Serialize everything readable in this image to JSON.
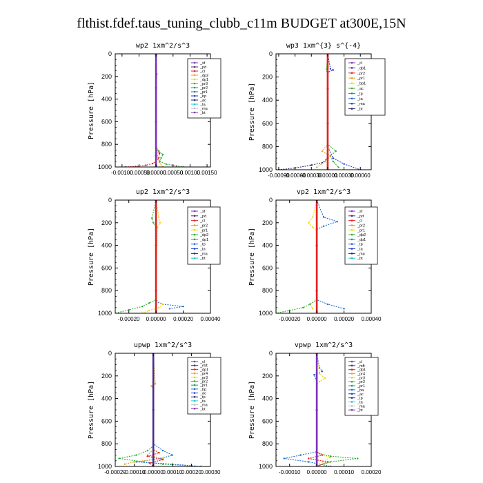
{
  "figure": {
    "title": "flthist.fdef.taus_tuning_clubb_c11m  BUDGET at300E,15N",
    "ylabel": "Pressure [hPa]"
  },
  "colors": {
    "legend_palette": [
      "#7b2fbe",
      "#4b2a8f",
      "#e0201c",
      "#e8a31a",
      "#f5d20b",
      "#2eb02e",
      "#12a15a",
      "#1e6fd0",
      "#1d3bd1",
      "#2a2a6f",
      "#16cccc",
      "#c0c0c0"
    ]
  },
  "chart_data": [
    {
      "type": "line",
      "title": "wp2  1xm^2/s^3",
      "ylabel": "Pressure [hPa]",
      "ylim": [
        1000,
        0
      ],
      "yticks": [
        0,
        200,
        400,
        600,
        800,
        1000
      ],
      "xlim": [
        -0.0012,
        0.0016
      ],
      "xtick_labels": [
        "-0.00100",
        "-0.00050",
        "0.00000",
        "0.00050",
        "0.00100",
        "0.00150"
      ],
      "legend": [
        "_sf",
        "_pd",
        "_cl",
        "_dp2",
        "_dp1",
        "_pr3",
        "_pr2",
        "_pr1",
        "_bp",
        "_ac",
        "_ta",
        "_ma",
        "_bt"
      ],
      "series": [
        {
          "color": "#e0201c",
          "x": [
            0,
            0,
            0,
            0,
            0,
            0,
            0,
            0,
            0.0001,
            8e-05,
            0,
            -0.0001,
            -0.0003,
            -0.0006,
            -0.0009
          ],
          "y": [
            0,
            100,
            200,
            300,
            500,
            700,
            800,
            840,
            880,
            920,
            950,
            970,
            985,
            995,
            1000
          ]
        },
        {
          "color": "#2eb02e",
          "x": [
            0,
            0,
            0,
            0,
            0,
            0,
            8e-05,
            0.0002,
            0.00015,
            0.0001,
            0.0003,
            0.0006,
            0.0008
          ],
          "y": [
            0,
            200,
            300,
            500,
            700,
            820,
            860,
            890,
            920,
            950,
            975,
            990,
            1000
          ]
        },
        {
          "color": "#e8a31a",
          "x": [
            0,
            0,
            3e-05,
            1e-05,
            0,
            0,
            5e-05,
            3e-05,
            0.0001,
            0.0002
          ],
          "y": [
            0,
            150,
            180,
            210,
            500,
            820,
            850,
            900,
            960,
            1000
          ]
        },
        {
          "color": "#7b2fbe",
          "x": [
            0,
            0,
            0,
            0,
            0
          ],
          "y": [
            0,
            300,
            600,
            900,
            1000
          ]
        }
      ]
    },
    {
      "type": "line",
      "title": "wp3  1xm^{3} s^{-4}",
      "ylabel": "Pressure [hPa]",
      "ylim": [
        1000,
        0
      ],
      "yticks": [
        0,
        200,
        400,
        600,
        800,
        1000
      ],
      "xlim": [
        -0.00095,
        0.0008
      ],
      "xtick_labels": [
        "-0.00090",
        "-0.00060",
        "-0.00030",
        "0.00000",
        "0.00030",
        "0.00060"
      ],
      "legend": [
        "_cl",
        "_dp1",
        "_pr2",
        "_pr1",
        "_bp1",
        "_ac",
        "_tp",
        "_ta",
        "_ma",
        "_bt"
      ],
      "series": [
        {
          "color": "#2a2a6f",
          "x": [
            0,
            0,
            0,
            0,
            0,
            -0.0001,
            -0.0003,
            -0.0006,
            -0.0009
          ],
          "y": [
            0,
            200,
            500,
            800,
            900,
            940,
            960,
            985,
            1000
          ]
        },
        {
          "color": "#1d3bd1",
          "x": [
            0,
            5e-05,
            0.0001,
            0,
            0,
            0.0001,
            0.0003,
            0.0006
          ],
          "y": [
            0,
            130,
            140,
            160,
            800,
            900,
            950,
            1000
          ]
        },
        {
          "color": "#2eb02e",
          "x": [
            0,
            -2e-05,
            -1e-05,
            0,
            0,
            0.00015,
            5e-05,
            0.0001,
            0.0002
          ],
          "y": [
            0,
            130,
            150,
            170,
            780,
            840,
            880,
            930,
            980
          ]
        },
        {
          "color": "#e8a31a",
          "x": [
            0,
            0,
            -0.0001,
            5e-05,
            -5e-05,
            -0.0002
          ],
          "y": [
            0,
            780,
            840,
            880,
            930,
            980
          ]
        },
        {
          "color": "#e0201c",
          "x": [
            0,
            0,
            0,
            0,
            0
          ],
          "y": [
            0,
            300,
            600,
            900,
            1000
          ]
        }
      ]
    },
    {
      "type": "line",
      "title": "up2  1xm^2/s^3",
      "ylabel": "Pressure [hPa]",
      "ylim": [
        1000,
        0
      ],
      "yticks": [
        0,
        200,
        400,
        600,
        800,
        1000
      ],
      "xlim": [
        -0.0003,
        0.0004
      ],
      "xtick_labels": [
        "-0.00020",
        "0.00000",
        "0.00020",
        "0.00040"
      ],
      "legend": [
        "_sf",
        "_pd",
        "_cl",
        "_pr2",
        "_pr1",
        "_dp2",
        "_dp1",
        "_tp",
        "_ta",
        "_ma",
        "_bt"
      ],
      "series": [
        {
          "color": "#2eb02e",
          "x": [
            0,
            -3e-05,
            -2e-05,
            0,
            0,
            0,
            -5e-05,
            -0.0001,
            -0.0002,
            -0.0003
          ],
          "y": [
            0,
            160,
            200,
            240,
            800,
            880,
            910,
            940,
            970,
            1000
          ]
        },
        {
          "color": "#1e6fd0",
          "x": [
            0,
            0,
            0,
            5e-05,
            0.0002,
            0.0001
          ],
          "y": [
            0,
            800,
            900,
            920,
            940,
            960
          ]
        },
        {
          "color": "#f5d20b",
          "x": [
            0,
            2e-05,
            3e-05,
            1e-05,
            0,
            0,
            5e-05,
            2e-05,
            -5e-05,
            -0.0001
          ],
          "y": [
            0,
            150,
            200,
            240,
            800,
            880,
            920,
            950,
            975,
            1000
          ]
        },
        {
          "color": "#e0201c",
          "x": [
            0,
            0,
            0,
            0
          ],
          "y": [
            0,
            400,
            800,
            1000
          ]
        }
      ]
    },
    {
      "type": "line",
      "title": "vp2  1xm^2/s^3",
      "ylabel": "Pressure [hPa]",
      "ylim": [
        1000,
        0
      ],
      "yticks": [
        0,
        200,
        400,
        600,
        800,
        1000
      ],
      "xlim": [
        -0.0003,
        0.0004
      ],
      "xtick_labels": [
        "-0.00020",
        "0.00000",
        "0.00020",
        "0.00040"
      ],
      "legend": [
        "_sf",
        "_pd",
        "_cl",
        "_pr2",
        "_pr1",
        "_dp2",
        "_dp1",
        "_tp",
        "_ta",
        "_ma",
        "_bt"
      ],
      "series": [
        {
          "color": "#1e6fd0",
          "x": [
            0,
            5e-05,
            0.00015,
            5e-05,
            0,
            0,
            8e-05,
            0.0002
          ],
          "y": [
            0,
            150,
            190,
            230,
            260,
            880,
            920,
            960
          ]
        },
        {
          "color": "#f5d20b",
          "x": [
            0,
            -3e-05,
            -6e-05,
            -3e-05,
            0,
            0,
            -5e-05,
            -3e-05
          ],
          "y": [
            0,
            150,
            200,
            240,
            270,
            880,
            920,
            960
          ]
        },
        {
          "color": "#2eb02e",
          "x": [
            0,
            0,
            -5e-05,
            -0.0001,
            -0.0002,
            -0.0003
          ],
          "y": [
            0,
            880,
            920,
            950,
            975,
            1000
          ]
        },
        {
          "color": "#e0201c",
          "x": [
            0,
            0,
            0,
            0
          ],
          "y": [
            0,
            400,
            800,
            1000
          ]
        }
      ]
    },
    {
      "type": "line",
      "title": "upwp  1xm^2/s^3",
      "ylabel": "Pressure [hPa]",
      "ylim": [
        1000,
        0
      ],
      "yticks": [
        0,
        200,
        400,
        600,
        800,
        1000
      ],
      "xlim": [
        -0.0002,
        0.0003
      ],
      "xtick_labels": [
        "-0.00020",
        "-0.00010",
        "0.00000",
        "0.00010",
        "0.00020",
        "0.00030"
      ],
      "legend": [
        "_cl",
        "_mft",
        "_dp1",
        "_pr4",
        "_pr3",
        "_pr2",
        "_pr1",
        "_bp",
        "_ac",
        "_tp",
        "_ta",
        "_ma",
        "_bt"
      ],
      "series": [
        {
          "color": "#2eb02e",
          "x": [
            0,
            0,
            -3e-05,
            -9e-05,
            -0.00018,
            -5e-05,
            5e-05,
            0.00025
          ],
          "y": [
            0,
            820,
            860,
            900,
            930,
            960,
            980,
            1000
          ]
        },
        {
          "color": "#1e6fd0",
          "x": [
            0,
            0,
            5e-05,
            0.0001,
            4e-05,
            -9e-05,
            0.0001,
            0.00025
          ],
          "y": [
            0,
            800,
            860,
            900,
            930,
            960,
            980,
            1000
          ]
        },
        {
          "color": "#e8a31a",
          "x": [
            0,
            1e-05,
            -1e-05,
            0,
            0,
            -3e-05,
            5e-05,
            -0.0001,
            -0.00015
          ],
          "y": [
            0,
            270,
            290,
            310,
            850,
            900,
            930,
            960,
            980
          ]
        },
        {
          "color": "#e0201c",
          "x": [
            0,
            0,
            3e-05,
            -3e-05,
            5e-05,
            -2e-05,
            0
          ],
          "y": [
            0,
            850,
            880,
            910,
            940,
            970,
            1000
          ]
        },
        {
          "color": "#4b2a8f",
          "x": [
            0,
            0,
            0
          ],
          "y": [
            0,
            500,
            1000
          ]
        }
      ]
    },
    {
      "type": "line",
      "title": "vpwp  1xm^2/s^3",
      "ylabel": "Pressure [hPa]",
      "ylim": [
        1000,
        0
      ],
      "yticks": [
        0,
        200,
        400,
        600,
        800,
        1000
      ],
      "xlim": [
        -0.00015,
        0.0002
      ],
      "xtick_labels": [
        "-0.00010",
        "0.00000",
        "0.00010",
        "0.00020"
      ],
      "legend": [
        "_cl",
        "_mft",
        "_dp1",
        "_pr4",
        "_pr3",
        "_pr2",
        "_pr1",
        "_ba",
        "_ac",
        "_tp",
        "_ta",
        "_ma",
        "_bt"
      ],
      "series": [
        {
          "color": "#1e6fd0",
          "x": [
            0,
            1e-05,
            2e-05,
            -1e-05,
            0,
            0,
            0,
            -6e-05,
            -0.00012,
            -3e-05,
            5e-05
          ],
          "y": [
            0,
            130,
            160,
            190,
            250,
            300,
            870,
            900,
            930,
            960,
            1000
          ]
        },
        {
          "color": "#f5d20b",
          "x": [
            0,
            1e-05,
            3e-05,
            1e-05,
            0,
            0,
            5e-05,
            2e-05
          ],
          "y": [
            0,
            180,
            220,
            250,
            280,
            880,
            920,
            960
          ]
        },
        {
          "color": "#2eb02e",
          "x": [
            0,
            0,
            5e-05,
            0.00015,
            5e-05,
            0
          ],
          "y": [
            0,
            880,
            910,
            930,
            960,
            1000
          ]
        },
        {
          "color": "#e0201c",
          "x": [
            0,
            0,
            2e-05,
            -3e-05,
            4e-05,
            0
          ],
          "y": [
            0,
            870,
            900,
            930,
            960,
            1000
          ]
        },
        {
          "color": "#7b2fbe",
          "x": [
            0,
            0,
            0
          ],
          "y": [
            0,
            500,
            1000
          ]
        }
      ]
    }
  ]
}
